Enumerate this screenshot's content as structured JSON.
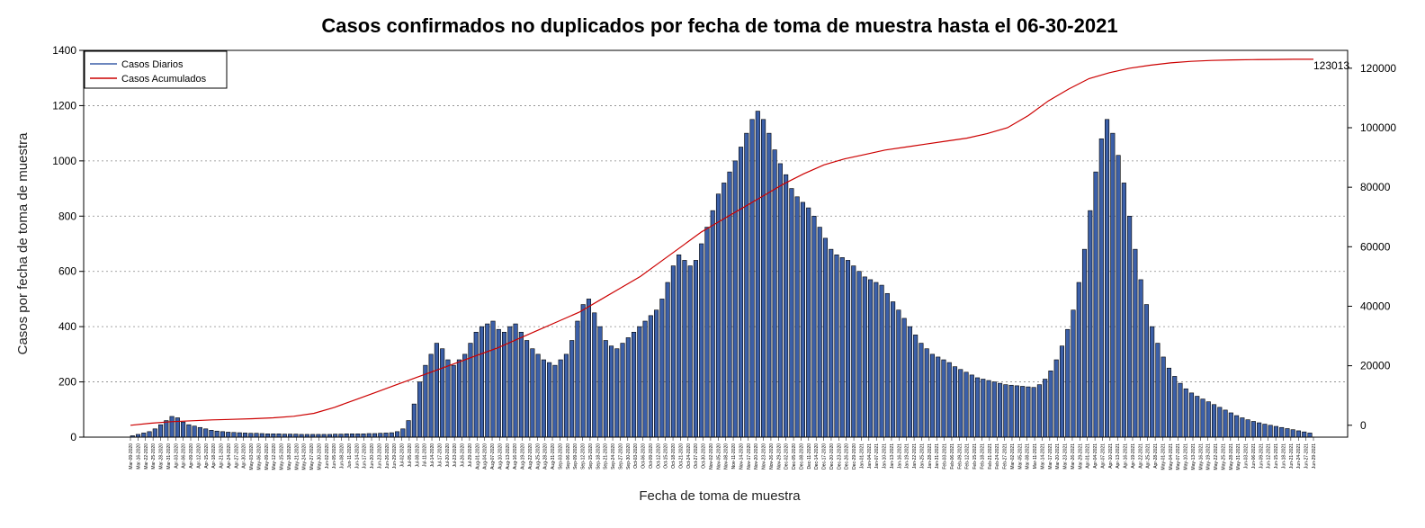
{
  "chart_data": {
    "type": "bar",
    "title": "Casos confirmados no duplicados por fecha de toma de muestra hasta el 06-30-2021",
    "xlabel": "Fecha de toma de muestra",
    "ylabel": "Casos por fecha de toma de muestra",
    "ylim": [
      0,
      1400
    ],
    "y_ticks": [
      "0",
      "200",
      "400",
      "600",
      "800",
      "1000",
      "1200",
      "1400"
    ],
    "y2lim": [
      -4000,
      126000
    ],
    "y2_ticks": [
      "0",
      "20000",
      "40000",
      "60000",
      "80000",
      "100000",
      "120000"
    ],
    "grid": "horizontal dashed",
    "legend_position": "top-left",
    "bar_color": "#3b5fa8",
    "line_color": "#cc0000",
    "final_cumulative_label": "123013",
    "series": [
      {
        "name": "Casos Diarios",
        "type": "bar",
        "values": [
          5,
          10,
          15,
          20,
          30,
          45,
          60,
          75,
          70,
          55,
          45,
          40,
          35,
          30,
          25,
          22,
          20,
          18,
          17,
          16,
          15,
          14,
          14,
          13,
          12,
          12,
          12,
          11,
          11,
          11,
          10,
          10,
          10,
          10,
          10,
          10,
          11,
          11,
          12,
          12,
          12,
          12,
          13,
          13,
          14,
          15,
          16,
          20,
          30,
          60,
          120,
          200,
          260,
          300,
          340,
          320,
          280,
          260,
          280,
          300,
          340,
          380,
          400,
          410,
          420,
          390,
          380,
          400,
          410,
          380,
          350,
          320,
          300,
          280,
          270,
          260,
          280,
          300,
          350,
          420,
          480,
          500,
          450,
          400,
          350,
          330,
          320,
          340,
          360,
          380,
          400,
          420,
          440,
          460,
          500,
          560,
          620,
          660,
          640,
          620,
          640,
          700,
          760,
          820,
          880,
          920,
          960,
          1000,
          1050,
          1100,
          1150,
          1180,
          1150,
          1100,
          1040,
          990,
          950,
          900,
          870,
          850,
          830,
          800,
          760,
          720,
          680,
          660,
          650,
          640,
          620,
          600,
          580,
          570,
          560,
          550,
          520,
          490,
          460,
          430,
          400,
          370,
          340,
          320,
          300,
          290,
          280,
          270,
          255,
          245,
          235,
          225,
          215,
          210,
          205,
          200,
          195,
          190,
          188,
          186,
          184,
          182,
          180,
          190,
          210,
          240,
          280,
          330,
          390,
          460,
          560,
          680,
          820,
          960,
          1080,
          1150,
          1100,
          1020,
          920,
          800,
          680,
          570,
          480,
          400,
          340,
          290,
          250,
          220,
          195,
          175,
          160,
          148,
          138,
          128,
          118,
          108,
          98,
          88,
          78,
          70,
          63,
          57,
          52,
          47,
          43,
          39,
          35,
          31,
          27,
          23,
          19,
          15
        ]
      },
      {
        "name": "Casos Acumulados",
        "type": "line",
        "values": [
          0,
          700,
          1200,
          1500,
          1800,
          2000,
          2200,
          2500,
          3000,
          4000,
          6000,
          8500,
          11000,
          13500,
          16000,
          18500,
          21000,
          23500,
          26000,
          29000,
          32000,
          35000,
          38000,
          42000,
          46000,
          50000,
          55000,
          60000,
          65000,
          69000,
          73000,
          77000,
          81000,
          84500,
          87500,
          89500,
          91000,
          92500,
          93500,
          94500,
          95500,
          96500,
          98000,
          100000,
          104000,
          109000,
          113000,
          116500,
          118500,
          120000,
          121000,
          121800,
          122300,
          122600,
          122800,
          122900,
          122950,
          123000,
          123013
        ]
      }
    ],
    "x_tick_labels": [
      "Mar-09-2020",
      "Mar-16-2020",
      "Mar-22-2020",
      "Mar-25-2020",
      "Mar-28-2020",
      "Mar-31-2020",
      "Apr-03-2020",
      "Apr-06-2020",
      "Apr-09-2020",
      "Apr-12-2020",
      "Apr-15-2020",
      "Apr-18-2020",
      "Apr-21-2020",
      "Apr-24-2020",
      "Apr-27-2020",
      "Apr-30-2020",
      "May-03-2020",
      "May-06-2020",
      "May-09-2020",
      "May-12-2020",
      "May-15-2020",
      "May-18-2020",
      "May-21-2020",
      "May-24-2020",
      "May-27-2020",
      "May-30-2020",
      "Jun-02-2020",
      "Jun-05-2020",
      "Jun-08-2020",
      "Jun-11-2020",
      "Jun-14-2020",
      "Jun-17-2020",
      "Jun-20-2020",
      "Jun-23-2020",
      "Jun-26-2020",
      "Jun-29-2020",
      "Jul-02-2020",
      "Jul-05-2020",
      "Jul-08-2020",
      "Jul-11-2020",
      "Jul-14-2020",
      "Jul-17-2020",
      "Jul-20-2020",
      "Jul-23-2020",
      "Jul-26-2020",
      "Jul-29-2020",
      "Aug-01-2020",
      "Aug-04-2020",
      "Aug-07-2020",
      "Aug-10-2020",
      "Aug-13-2020",
      "Aug-16-2020",
      "Aug-19-2020",
      "Aug-22-2020",
      "Aug-25-2020",
      "Aug-28-2020",
      "Aug-31-2020",
      "Sep-03-2020",
      "Sep-06-2020",
      "Sep-09-2020",
      "Sep-12-2020",
      "Sep-15-2020",
      "Sep-18-2020",
      "Sep-21-2020",
      "Sep-24-2020",
      "Sep-27-2020",
      "Sep-30-2020",
      "Oct-03-2020",
      "Oct-06-2020",
      "Oct-09-2020",
      "Oct-12-2020",
      "Oct-15-2020",
      "Oct-18-2020",
      "Oct-21-2020",
      "Oct-24-2020",
      "Oct-27-2020",
      "Oct-30-2020",
      "Nov-02-2020",
      "Nov-05-2020",
      "Nov-08-2020",
      "Nov-11-2020",
      "Nov-14-2020",
      "Nov-17-2020",
      "Nov-20-2020",
      "Nov-23-2020",
      "Nov-26-2020",
      "Nov-29-2020",
      "Dec-02-2020",
      "Dec-05-2020",
      "Dec-08-2020",
      "Dec-11-2020",
      "Dec-14-2020",
      "Dec-17-2020",
      "Dec-20-2020",
      "Dec-23-2020",
      "Dec-26-2020",
      "Dec-29-2020",
      "Jan-01-2021",
      "Jan-04-2021",
      "Jan-07-2021",
      "Jan-10-2021",
      "Jan-13-2021",
      "Jan-16-2021",
      "Jan-19-2021",
      "Jan-22-2021",
      "Jan-25-2021",
      "Jan-28-2021",
      "Jan-31-2021",
      "Feb-03-2021",
      "Feb-06-2021",
      "Feb-09-2021",
      "Feb-12-2021",
      "Feb-15-2021",
      "Feb-18-2021",
      "Feb-21-2021",
      "Feb-24-2021",
      "Feb-27-2021",
      "Mar-02-2021",
      "Mar-05-2021",
      "Mar-08-2021",
      "Mar-11-2021",
      "Mar-14-2021",
      "Mar-17-2021",
      "Mar-20-2021",
      "Mar-23-2021",
      "Mar-26-2021",
      "Mar-29-2021",
      "Apr-01-2021",
      "Apr-04-2021",
      "Apr-07-2021",
      "Apr-10-2021",
      "Apr-13-2021",
      "Apr-16-2021",
      "Apr-19-2021",
      "Apr-22-2021",
      "Apr-25-2021",
      "Apr-28-2021",
      "May-01-2021",
      "May-04-2021",
      "May-07-2021",
      "May-10-2021",
      "May-13-2021",
      "May-16-2021",
      "May-19-2021",
      "May-22-2021",
      "May-25-2021",
      "May-28-2021",
      "May-31-2021",
      "Jun-03-2021",
      "Jun-06-2021",
      "Jun-09-2021",
      "Jun-12-2021",
      "Jun-15-2021",
      "Jun-18-2021",
      "Jun-21-2021",
      "Jun-24-2021",
      "Jun-27-2021",
      "Jun-29-2021"
    ]
  }
}
